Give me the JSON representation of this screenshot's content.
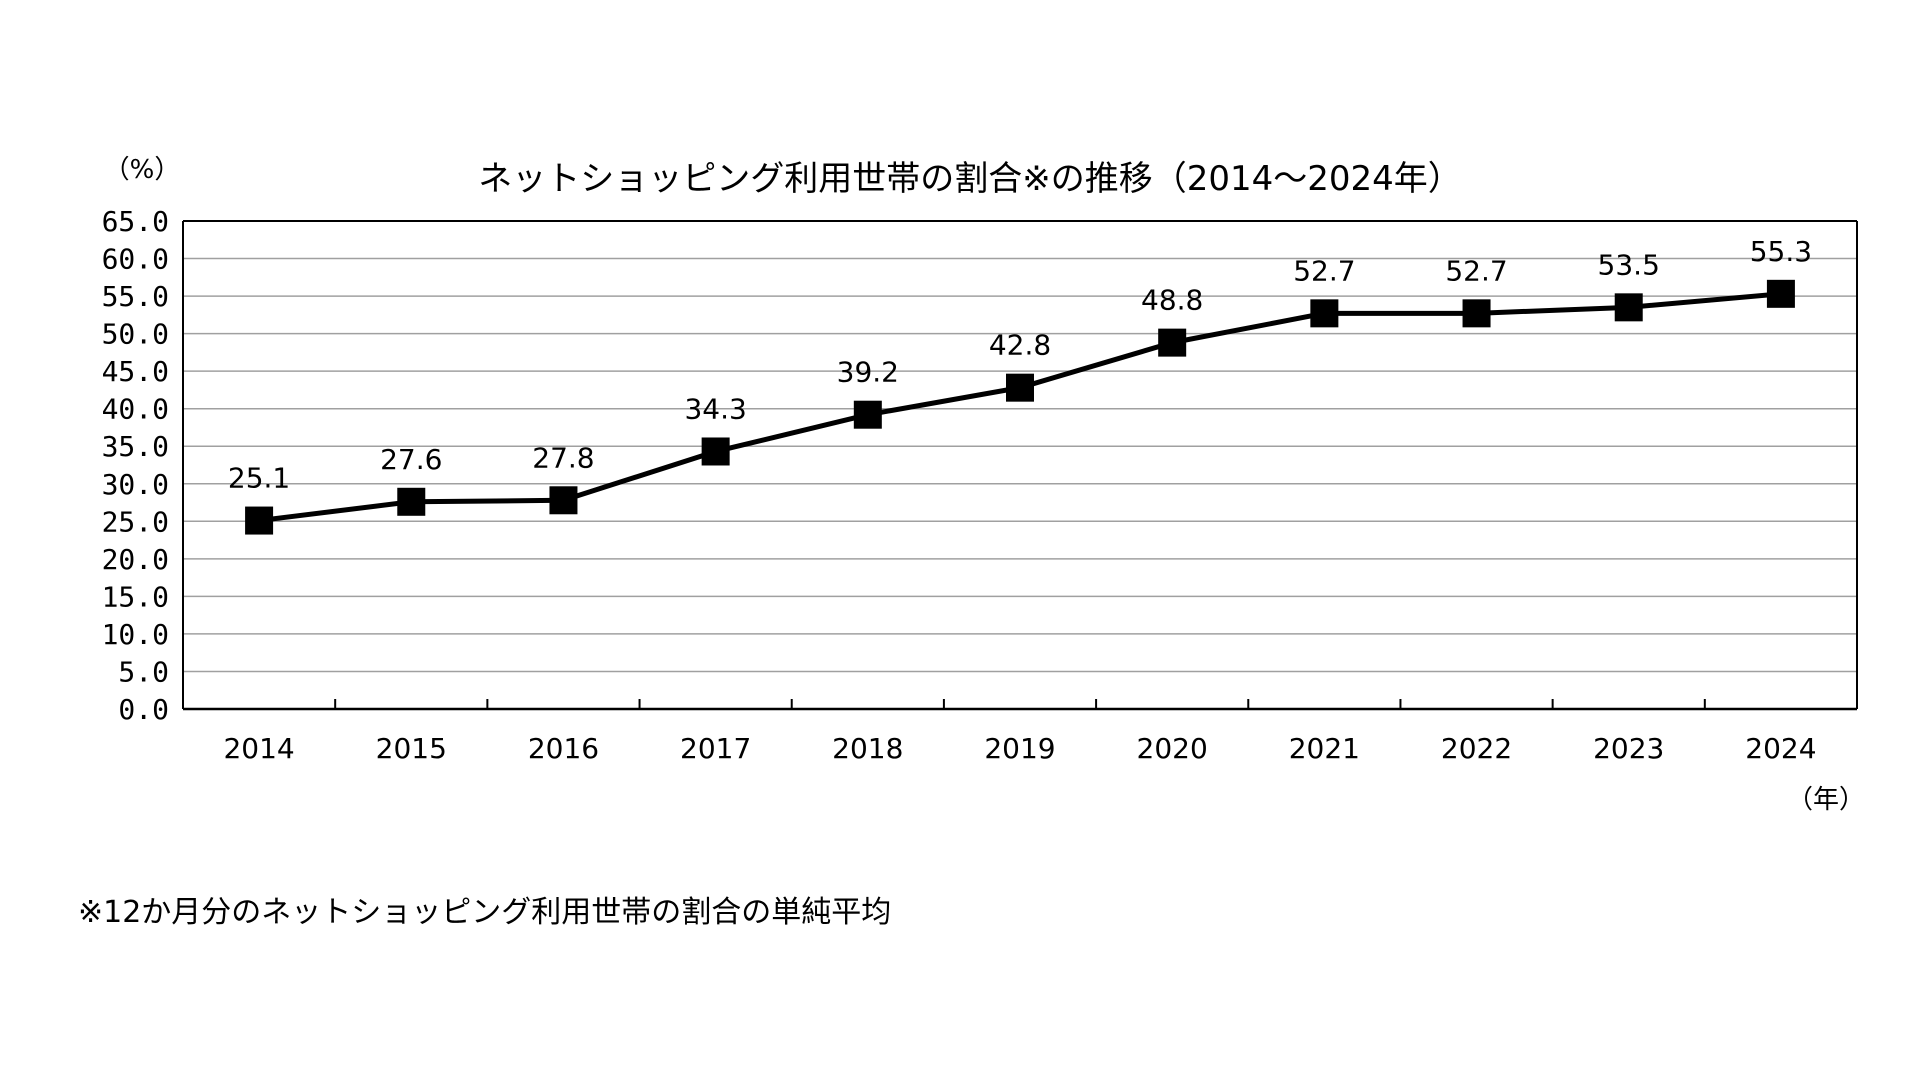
{
  "chart_data": {
    "type": "line",
    "title": "ネットショッピング利用世帯の割合※の推移（2014～2024年）",
    "ylabel": "（%）",
    "xlabel": "（年）",
    "categories": [
      "2014",
      "2015",
      "2016",
      "2017",
      "2018",
      "2019",
      "2020",
      "2021",
      "2022",
      "2023",
      "2024"
    ],
    "series": [
      {
        "values": [
          25.1,
          27.6,
          27.8,
          34.3,
          39.2,
          42.8,
          48.8,
          52.7,
          52.7,
          53.5,
          55.3
        ]
      }
    ],
    "data_labels": [
      "25.1",
      "27.6",
      "27.8",
      "34.3",
      "39.2",
      "42.8",
      "48.8",
      "52.7",
      "52.7",
      "53.5",
      "55.3"
    ],
    "yticks": [
      "0.0",
      "5.0",
      "10.0",
      "15.0",
      "20.0",
      "25.0",
      "30.0",
      "35.0",
      "40.0",
      "45.0",
      "50.0",
      "55.0",
      "60.0",
      "65.0"
    ],
    "ytick_values": [
      0,
      5,
      10,
      15,
      20,
      25,
      30,
      35,
      40,
      45,
      50,
      55,
      60,
      65
    ],
    "ylim": [
      0,
      65
    ],
    "grid": true,
    "legend": "none",
    "line_color": "#000000",
    "grid_color": "#a0a0a0",
    "marker": "square"
  },
  "footnote": "※12か月分のネットショッピング利用世帯の割合の単純平均"
}
